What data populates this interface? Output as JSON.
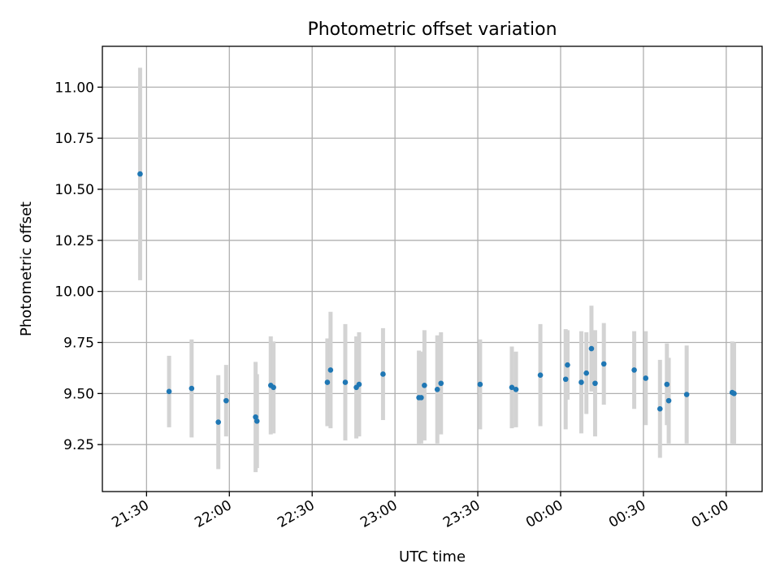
{
  "chart_data": {
    "type": "scatter",
    "title": "Photometric offset variation",
    "xlabel": "UTC time",
    "ylabel": "Photometric offset",
    "x_unit": "UTC time (HH:MM), times after 24:00 belong to the next day",
    "xlim": [
      "21:14",
      "01:13"
    ],
    "ylim": [
      9.02,
      11.2
    ],
    "x_ticks": [
      "21:30",
      "22:00",
      "22:30",
      "23:00",
      "23:30",
      "00:00",
      "00:30",
      "01:00"
    ],
    "y_ticks": [
      "9.25",
      "9.50",
      "9.75",
      "10.00",
      "10.25",
      "10.50",
      "10.75",
      "11.00"
    ],
    "grid": true,
    "legend": "none",
    "colors": {
      "point": "#1f77b4",
      "errorbar": "#d3d3d3",
      "grid": "#b0b0b0"
    },
    "series": [
      {
        "points": [
          {
            "t": "21:27:40",
            "y": 10.575,
            "err": 0.52
          },
          {
            "t": "21:38:10",
            "y": 9.51,
            "err": 0.175
          },
          {
            "t": "21:46:20",
            "y": 9.525,
            "err": 0.24
          },
          {
            "t": "21:56:00",
            "y": 9.36,
            "err": 0.23
          },
          {
            "t": "21:58:50",
            "y": 9.465,
            "err": 0.175
          },
          {
            "t": "22:09:30",
            "y": 9.385,
            "err": 0.27
          },
          {
            "t": "22:10:00",
            "y": 9.365,
            "err": 0.23
          },
          {
            "t": "22:15:00",
            "y": 9.54,
            "err": 0.24
          },
          {
            "t": "22:16:00",
            "y": 9.53,
            "err": 0.225
          },
          {
            "t": "22:35:30",
            "y": 9.555,
            "err": 0.215
          },
          {
            "t": "22:36:40",
            "y": 9.615,
            "err": 0.285
          },
          {
            "t": "22:42:00",
            "y": 9.555,
            "err": 0.285
          },
          {
            "t": "22:46:00",
            "y": 9.53,
            "err": 0.25
          },
          {
            "t": "22:47:00",
            "y": 9.545,
            "err": 0.255
          },
          {
            "t": "22:55:40",
            "y": 9.595,
            "err": 0.225
          },
          {
            "t": "23:08:40",
            "y": 9.48,
            "err": 0.23
          },
          {
            "t": "23:09:30",
            "y": 9.48,
            "err": 0.225
          },
          {
            "t": "23:10:40",
            "y": 9.54,
            "err": 0.27
          },
          {
            "t": "23:15:20",
            "y": 9.52,
            "err": 0.265
          },
          {
            "t": "23:16:40",
            "y": 9.55,
            "err": 0.25
          },
          {
            "t": "23:30:50",
            "y": 9.545,
            "err": 0.22
          },
          {
            "t": "23:42:20",
            "y": 9.53,
            "err": 0.2
          },
          {
            "t": "23:43:50",
            "y": 9.52,
            "err": 0.185
          },
          {
            "t": "23:52:40",
            "y": 9.59,
            "err": 0.25
          },
          {
            "t": "00:01:50",
            "y": 9.57,
            "err": 0.245
          },
          {
            "t": "00:02:30",
            "y": 9.64,
            "err": 0.17
          },
          {
            "t": "00:07:30",
            "y": 9.555,
            "err": 0.25
          },
          {
            "t": "00:09:20",
            "y": 9.6,
            "err": 0.2
          },
          {
            "t": "00:11:10",
            "y": 9.72,
            "err": 0.21
          },
          {
            "t": "00:12:30",
            "y": 9.55,
            "err": 0.26
          },
          {
            "t": "00:15:40",
            "y": 9.645,
            "err": 0.2
          },
          {
            "t": "00:26:40",
            "y": 9.615,
            "err": 0.19
          },
          {
            "t": "00:30:50",
            "y": 9.575,
            "err": 0.23
          },
          {
            "t": "00:36:00",
            "y": 9.425,
            "err": 0.24
          },
          {
            "t": "00:38:30",
            "y": 9.545,
            "err": 0.2
          },
          {
            "t": "00:39:10",
            "y": 9.465,
            "err": 0.21
          },
          {
            "t": "00:45:40",
            "y": 9.495,
            "err": 0.24
          },
          {
            "t": "01:02:10",
            "y": 9.505,
            "err": 0.25
          },
          {
            "t": "01:02:50",
            "y": 9.5,
            "err": 0.25
          }
        ]
      }
    ]
  }
}
